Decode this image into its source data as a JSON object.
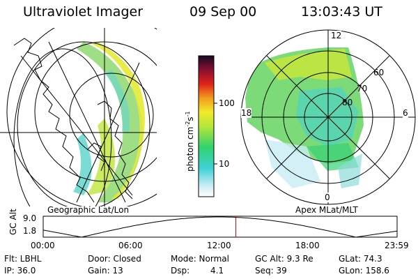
{
  "header": {
    "instrument": "Ultraviolet Imager",
    "date": "09 Sep 00",
    "time": "13:03:43 UT"
  },
  "panels": {
    "geo_label": "Geographic Lat/Lon",
    "apex_label": "Apex MLat/MLT"
  },
  "colorbar": {
    "unit_label": "photon cm",
    "unit_sup1": "-2",
    "unit_mid": "s",
    "unit_sup2": "-1",
    "tick_high": "100",
    "tick_low": "10",
    "scale": "log"
  },
  "polar": {
    "mlt_top": "12",
    "mlt_left": "18",
    "mlt_right": "6",
    "mlt_bottom": "0",
    "lat_60": "60",
    "lat_70": "70",
    "lat_80": "80"
  },
  "altitude_plot": {
    "axis_label": "GC Alt",
    "y_high": "9.0",
    "y_low": "1.8",
    "x_ticks": [
      "00:00",
      "06:00",
      "12:00",
      "18:00",
      "23:59"
    ],
    "marker_time_hours": 13.06,
    "marker_color": "#cc0000"
  },
  "footer": {
    "flt": "Flt: LBHL",
    "ip": "IP: 36.0",
    "door": "Door: Closed",
    "gain": "Gain: 13",
    "mode": "Mode: Normal",
    "dsp_label": "Dsp:",
    "dsp_value": "4.1",
    "gc_alt": "GC Alt: 9.3 Re",
    "seq": "Seq: 39",
    "glat": "GLat: 74.3",
    "glon": "GLon: 158.6"
  }
}
